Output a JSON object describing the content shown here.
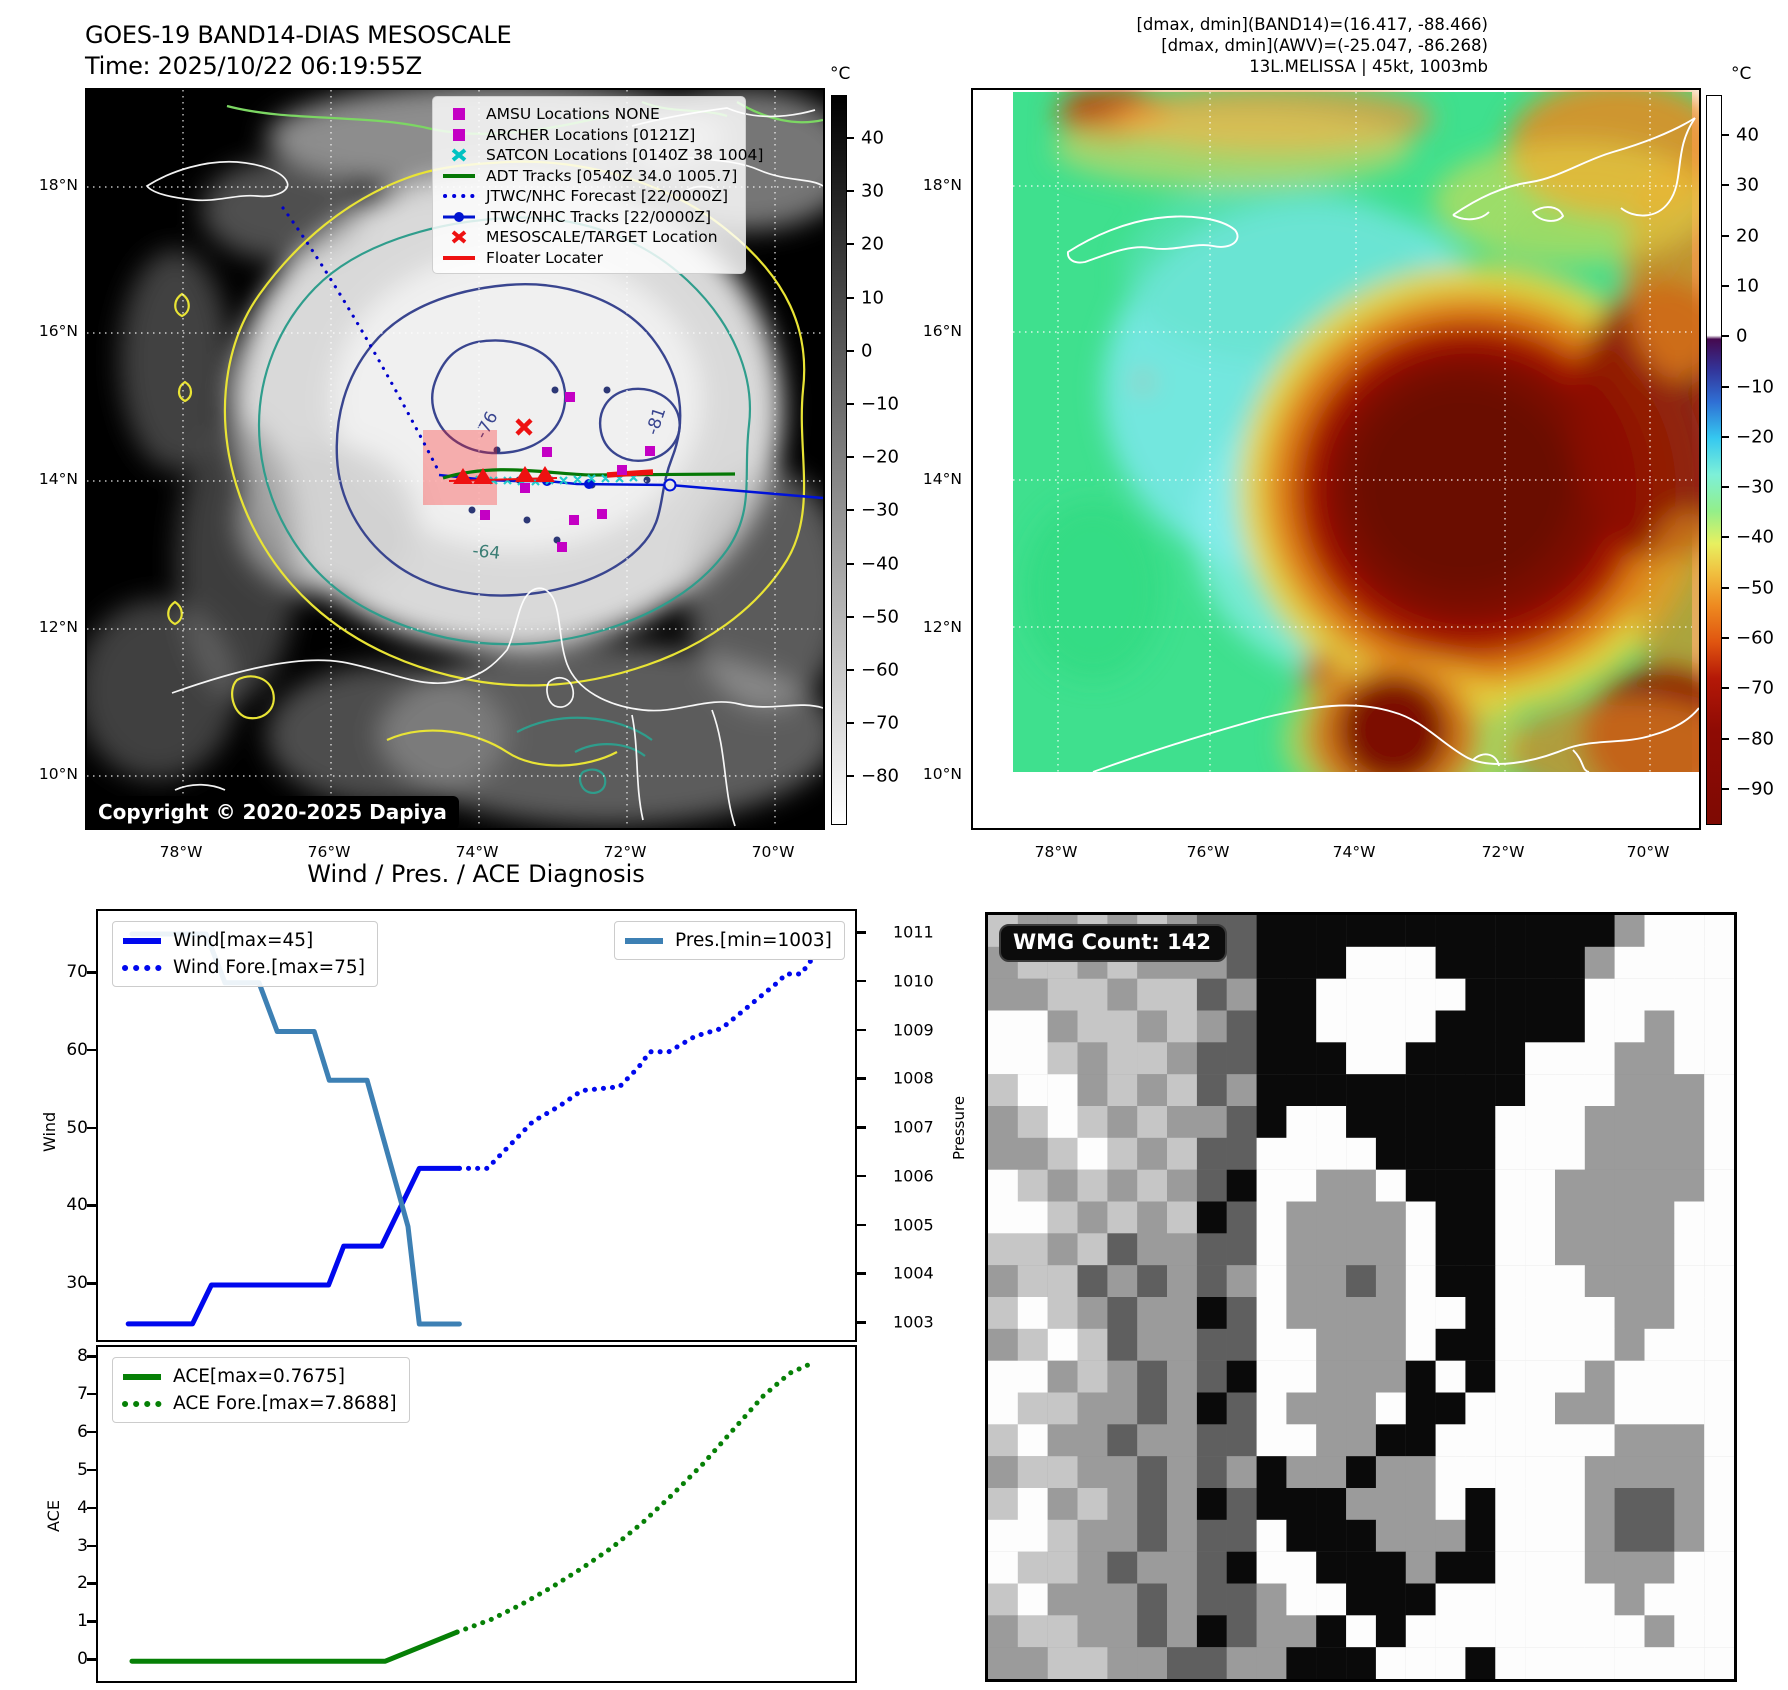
{
  "header": {
    "title_line1": "GOES-19 BAND14-DIAS MESOSCALE",
    "title_line2": "Time: 2025/10/22 06:19:55Z",
    "annotation_line1": "[dmax, dmin](BAND14)=(16.417, -88.466)",
    "annotation_line2": "[dmax, dmin](AWV)=(-25.047, -86.268)",
    "annotation_line3": "13L.MELISSA | 45kt, 1003mb"
  },
  "left_map": {
    "legend": [
      {
        "label": "AMSU Locations NONE",
        "marker": "square",
        "color": "#c400c4"
      },
      {
        "label": "ARCHER Locations [0121Z]",
        "marker": "square",
        "color": "#c400c4"
      },
      {
        "label": "SATCON Locations [0140Z 38 1004]",
        "marker": "x",
        "color": "#00c2c2"
      },
      {
        "label": "ADT Tracks [0540Z 34.0 1005.7]",
        "marker": "line",
        "color": "#067806"
      },
      {
        "label": "JTWC/NHC Forecast [22/0000Z]",
        "marker": "dotted",
        "color": "#0000dd"
      },
      {
        "label": "JTWC/NHC Tracks [22/0000Z]",
        "marker": "line-dot",
        "color": "#0013d0"
      },
      {
        "label": "MESOSCALE/TARGET Location",
        "marker": "x",
        "color": "#ee1111"
      },
      {
        "label": "Floater Locater",
        "marker": "line",
        "color": "#ee1111"
      }
    ],
    "lat_labels": [
      "18°N",
      "16°N",
      "14°N",
      "12°N",
      "10°N"
    ],
    "lon_labels": [
      "78°W",
      "76°W",
      "74°W",
      "72°W",
      "70°W"
    ],
    "copyright": "Copyright © 2020-2025 Dapiya",
    "colorbar": {
      "unit": "°C",
      "ticks": [
        "40",
        "30",
        "20",
        "10",
        "0",
        "−10",
        "−20",
        "−30",
        "−40",
        "−50",
        "−60",
        "−70",
        "−80"
      ]
    },
    "contour_labels": {
      "c1": "-76",
      "c2": "-81",
      "c3": "-64"
    }
  },
  "right_map": {
    "lat_labels": [
      "18°N",
      "16°N",
      "14°N",
      "12°N",
      "10°N"
    ],
    "lon_labels": [
      "78°W",
      "76°W",
      "74°W",
      "72°W",
      "70°W"
    ],
    "colorbar": {
      "unit": "°C",
      "ticks": [
        "40",
        "30",
        "20",
        "10",
        "0",
        "−10",
        "−20",
        "−30",
        "−40",
        "−50",
        "−60",
        "−70",
        "−80",
        "−90"
      ]
    }
  },
  "charts": {
    "title": "Wind / Pres. / ACE Diagnosis",
    "wind": {
      "ylabel": "Wind",
      "y2label": "Pressure",
      "yticks": [
        "70",
        "60",
        "50",
        "40",
        "30"
      ],
      "y2ticks": [
        "1011",
        "1010",
        "1009",
        "1008",
        "1007",
        "1006",
        "1005",
        "1004",
        "1003"
      ],
      "legend_wind": "Wind[max=45]",
      "legend_wind_fore": "Wind Fore.[max=75]",
      "legend_pres": "Pres.[min=1003]"
    },
    "ace": {
      "ylabel": "ACE",
      "yticks": [
        "8",
        "7",
        "6",
        "5",
        "4",
        "3",
        "2",
        "1",
        "0"
      ],
      "legend_ace": "ACE[max=0.7675]",
      "legend_ace_fore": "ACE Fore.[max=7.8688]"
    }
  },
  "chart_data": [
    {
      "type": "line",
      "title": "Wind / Pres. / ACE Diagnosis (upper panel)",
      "xlabel": "",
      "ylabel": "Wind",
      "y2label": "Pressure",
      "ylim": [
        22,
        78
      ],
      "y2lim": [
        1002.5,
        1011.5
      ],
      "legend_position": "upper-left and upper-right",
      "series": [
        {
          "name": "Wind[max=45]",
          "style": "solid",
          "color": "#0008ee",
          "axis": "wind",
          "points": [
            [
              0.04,
              25
            ],
            [
              0.125,
              25
            ],
            [
              0.15,
              30
            ],
            [
              0.305,
              30
            ],
            [
              0.325,
              35
            ],
            [
              0.375,
              35
            ],
            [
              0.4,
              40
            ],
            [
              0.425,
              45
            ],
            [
              0.478,
              45
            ]
          ]
        },
        {
          "name": "Wind Fore.[max=75]",
          "style": "dotted",
          "color": "#0008ee",
          "axis": "wind",
          "points": [
            [
              0.478,
              45
            ],
            [
              0.515,
              45
            ],
            [
              0.545,
              48
            ],
            [
              0.575,
              51
            ],
            [
              0.61,
              53
            ],
            [
              0.64,
              55
            ],
            [
              0.69,
              55.5
            ],
            [
              0.715,
              58
            ],
            [
              0.73,
              60
            ],
            [
              0.755,
              60
            ],
            [
              0.79,
              62
            ],
            [
              0.825,
              63
            ],
            [
              0.85,
              65
            ],
            [
              0.875,
              67
            ],
            [
              0.9,
              69
            ],
            [
              0.91,
              70
            ],
            [
              0.93,
              70
            ],
            [
              0.945,
              72
            ]
          ]
        },
        {
          "name": "Pres.[min=1003]",
          "style": "solid",
          "color": "#3d80b4",
          "axis": "pressure",
          "points": [
            [
              0.045,
              1011
            ],
            [
              0.143,
              1011
            ],
            [
              0.168,
              1010
            ],
            [
              0.213,
              1010
            ],
            [
              0.237,
              1009
            ],
            [
              0.286,
              1009
            ],
            [
              0.306,
              1008
            ],
            [
              0.356,
              1008
            ],
            [
              0.41,
              1005
            ],
            [
              0.425,
              1003
            ],
            [
              0.478,
              1003
            ]
          ]
        }
      ]
    },
    {
      "type": "line",
      "title": "Wind / Pres. / ACE Diagnosis (lower panel)",
      "xlabel": "",
      "ylabel": "ACE",
      "ylim": [
        -0.3,
        8.2
      ],
      "series": [
        {
          "name": "ACE[max=0.7675]",
          "style": "solid",
          "color": "#068006",
          "axis": "ace",
          "points": [
            [
              0.045,
              0
            ],
            [
              0.38,
              0
            ],
            [
              0.475,
              0.7675
            ]
          ]
        },
        {
          "name": "ACE Fore.[max=7.8688]",
          "style": "dotted",
          "color": "#068006",
          "axis": "ace",
          "points": [
            [
              0.475,
              0.7675
            ],
            [
              0.52,
              1.1
            ],
            [
              0.56,
              1.5
            ],
            [
              0.6,
              1.95
            ],
            [
              0.64,
              2.45
            ],
            [
              0.68,
              3.0
            ],
            [
              0.72,
              3.65
            ],
            [
              0.76,
              4.4
            ],
            [
              0.8,
              5.2
            ],
            [
              0.84,
              6.1
            ],
            [
              0.88,
              7.0
            ],
            [
              0.915,
              7.6
            ],
            [
              0.945,
              7.8688
            ]
          ]
        }
      ]
    }
  ],
  "wmg": {
    "label": "WMG Count: 142",
    "palette": {
      "0": "#0a0a0a",
      "1": "#5f5f5f",
      "2": "#9b9b9b",
      "3": "#c6c6c6",
      "4": "#fdfdfd"
    },
    "rows": [
      "3223232110000000000002444",
      "2332322210004440000024444",
      "2233233120044444000044444",
      "4423323210044440000044244",
      "4432332110004400004442244",
      "3442323120000000004442224",
      "2343232210440000044422224",
      "2234323114444000044422224",
      "4323232104422400044222224",
      "4432323014222240044222244",
      "3323122114222240044222244",
      "2331212124221240044422244",
      "3432122014222244044442244",
      "2343122114422240044442444",
      "4423212104422204044424444",
      "4332212014222400444224444",
      "3422122114422004444442224",
      "2332212120220224444422224",
      "3423212010002224044421124",
      "4432212114000222044421124",
      "4332122104400020044422244",
      "3422212112440004444442444",
      "2332212012204044444444244",
      "2233221122000444044444444"
    ]
  }
}
